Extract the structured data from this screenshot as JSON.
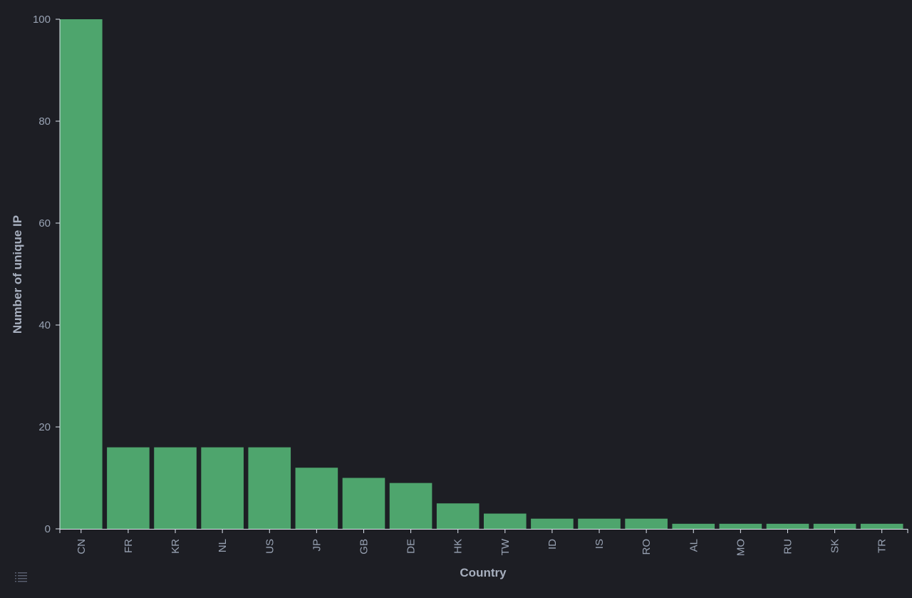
{
  "chart_data": {
    "type": "bar",
    "categories": [
      "CN",
      "FR",
      "KR",
      "NL",
      "US",
      "JP",
      "GB",
      "DE",
      "HK",
      "TW",
      "ID",
      "IS",
      "RO",
      "AL",
      "MO",
      "RU",
      "SK",
      "TR"
    ],
    "values": [
      100,
      16,
      16,
      16,
      16,
      12,
      10,
      9,
      5,
      3,
      2,
      2,
      2,
      1,
      1,
      1,
      1,
      1
    ],
    "xlabel": "Country",
    "ylabel": "Number of unique IP",
    "ylim": [
      0,
      100
    ],
    "yticks": [
      0,
      20,
      40,
      60,
      80,
      100
    ],
    "grid": false,
    "bar_color": "#4ea56d"
  },
  "legend_toggle": {
    "icon": "list-icon"
  },
  "colors": {
    "background": "#1d1e24",
    "axis": "#dfe5ef",
    "tick_text": "#98a2b3",
    "title_text": "#a7afbe"
  }
}
